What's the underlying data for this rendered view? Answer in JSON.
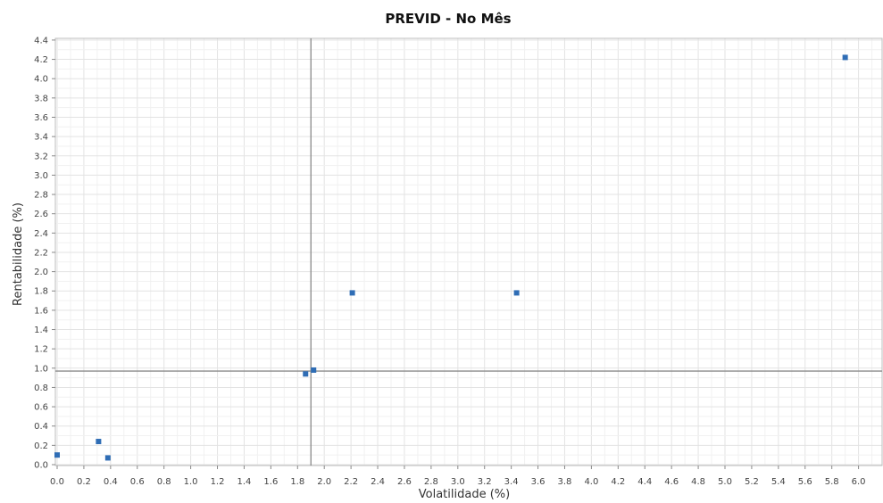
{
  "chart_data": {
    "type": "scatter",
    "title": "PREVID - No Mês",
    "xlabel": "Volatilidade (%)",
    "ylabel": "Rentabilidade (%)",
    "xlim": [
      0.0,
      6.2
    ],
    "ylim": [
      0.0,
      4.4
    ],
    "x_ticks": [
      "0.0",
      "0.2",
      "0.4",
      "0.6",
      "0.8",
      "1.0",
      "1.2",
      "1.4",
      "1.6",
      "1.8",
      "2.0",
      "2.2",
      "2.4",
      "2.6",
      "2.8",
      "3.0",
      "3.2",
      "3.4",
      "3.6",
      "3.8",
      "4.0",
      "4.2",
      "4.4",
      "4.6",
      "4.8",
      "5.0",
      "5.2",
      "5.4",
      "5.6",
      "5.8",
      "6.0"
    ],
    "y_ticks": [
      "0.0",
      "0.2",
      "0.4",
      "0.6",
      "0.8",
      "1.0",
      "1.2",
      "1.4",
      "1.6",
      "1.8",
      "2.0",
      "2.2",
      "2.4",
      "2.6",
      "2.8",
      "3.0",
      "3.2",
      "3.4",
      "3.6",
      "3.8",
      "4.0",
      "4.2",
      "4.4"
    ],
    "grid": true,
    "reference_lines": {
      "x": 1.9,
      "y": 0.97
    },
    "marker_color": "#2f6db5",
    "points": [
      {
        "x": 0.0,
        "y": 0.1
      },
      {
        "x": 0.31,
        "y": 0.24
      },
      {
        "x": 0.38,
        "y": 0.07
      },
      {
        "x": 1.86,
        "y": 0.94
      },
      {
        "x": 1.92,
        "y": 0.98
      },
      {
        "x": 2.21,
        "y": 1.78
      },
      {
        "x": 3.44,
        "y": 1.78
      },
      {
        "x": 5.9,
        "y": 4.22
      }
    ]
  }
}
